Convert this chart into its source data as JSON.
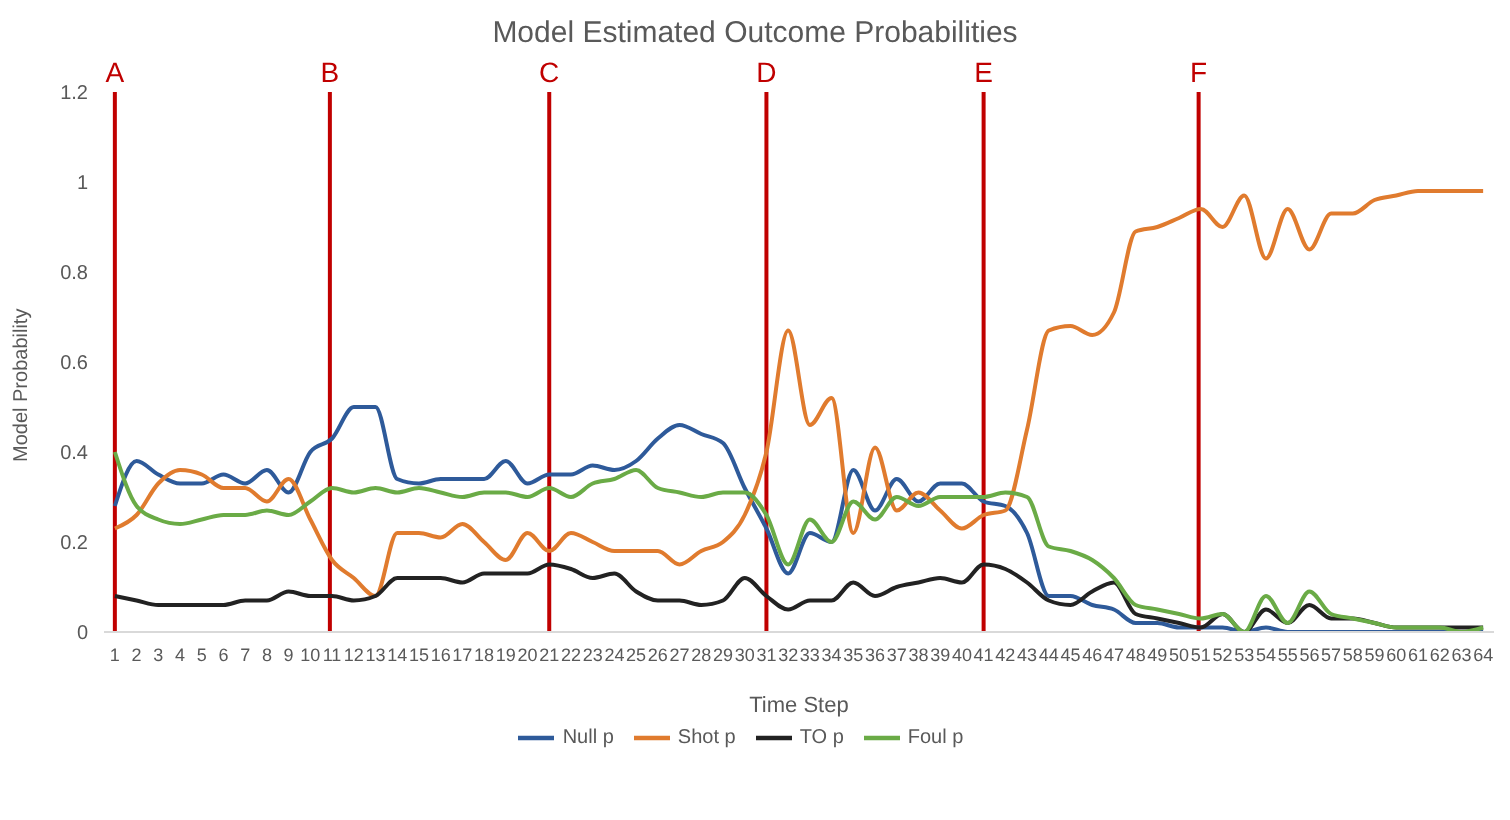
{
  "chart_data": {
    "type": "line",
    "title": "Model Estimated Outcome Probabilities",
    "xlabel": "Time Step",
    "ylabel": "Model Probability",
    "x": [
      1,
      2,
      3,
      4,
      5,
      6,
      7,
      8,
      9,
      10,
      11,
      12,
      13,
      14,
      15,
      16,
      17,
      18,
      19,
      20,
      21,
      22,
      23,
      24,
      25,
      26,
      27,
      28,
      29,
      30,
      31,
      32,
      33,
      34,
      35,
      36,
      37,
      38,
      39,
      40,
      41,
      42,
      43,
      44,
      45,
      46,
      47,
      48,
      49,
      50,
      51,
      52,
      53,
      54,
      55,
      56,
      57,
      58,
      59,
      60,
      61,
      62,
      63,
      64
    ],
    "xlim": [
      0.5,
      64.5
    ],
    "xticks": [
      1,
      2,
      3,
      4,
      5,
      6,
      7,
      8,
      9,
      10,
      11,
      12,
      13,
      14,
      15,
      16,
      17,
      18,
      19,
      20,
      21,
      22,
      23,
      24,
      25,
      26,
      27,
      28,
      29,
      30,
      31,
      32,
      33,
      34,
      35,
      36,
      37,
      38,
      39,
      40,
      41,
      42,
      43,
      44,
      45,
      46,
      47,
      48,
      49,
      50,
      51,
      52,
      53,
      54,
      55,
      56,
      57,
      58,
      59,
      60,
      61,
      62,
      63,
      64
    ],
    "ylim": [
      0,
      1.2
    ],
    "yticks": [
      0,
      0.2,
      0.4,
      0.6,
      0.8,
      1,
      1.2
    ],
    "legend": "bottom",
    "marker": "none",
    "line_style": "solid",
    "series": [
      {
        "name": "Null p",
        "color": "#2e5a9a",
        "values": [
          0.28,
          0.38,
          0.35,
          0.33,
          0.33,
          0.35,
          0.33,
          0.36,
          0.31,
          0.4,
          0.43,
          0.5,
          0.5,
          0.34,
          0.33,
          0.34,
          0.34,
          0.34,
          0.38,
          0.33,
          0.35,
          0.35,
          0.37,
          0.36,
          0.38,
          0.43,
          0.46,
          0.44,
          0.42,
          0.32,
          0.23,
          0.13,
          0.22,
          0.2,
          0.36,
          0.27,
          0.34,
          0.29,
          0.33,
          0.33,
          0.29,
          0.28,
          0.22,
          0.08,
          0.08,
          0.06,
          0.05,
          0.02,
          0.02,
          0.01,
          0.01,
          0.01,
          0,
          0.01,
          0,
          0,
          0,
          0,
          0,
          0,
          0,
          0,
          0,
          0
        ]
      },
      {
        "name": "Shot p",
        "color": "#e07b2e",
        "values": [
          0.23,
          0.26,
          0.33,
          0.36,
          0.35,
          0.32,
          0.32,
          0.29,
          0.34,
          0.25,
          0.16,
          0.12,
          0.08,
          0.22,
          0.22,
          0.21,
          0.24,
          0.2,
          0.16,
          0.22,
          0.18,
          0.22,
          0.2,
          0.18,
          0.18,
          0.18,
          0.15,
          0.18,
          0.2,
          0.26,
          0.4,
          0.67,
          0.46,
          0.52,
          0.22,
          0.41,
          0.27,
          0.31,
          0.27,
          0.23,
          0.26,
          0.27,
          0.45,
          0.67,
          0.68,
          0.66,
          0.71,
          0.89,
          0.9,
          0.92,
          0.94,
          0.9,
          0.97,
          0.83,
          0.94,
          0.85,
          0.93,
          0.93,
          0.96,
          0.97,
          0.98,
          0.98,
          0.98,
          0.98
        ]
      },
      {
        "name": "TO p",
        "color": "#222222",
        "values": [
          0.08,
          0.07,
          0.06,
          0.06,
          0.06,
          0.06,
          0.07,
          0.07,
          0.09,
          0.08,
          0.08,
          0.07,
          0.08,
          0.12,
          0.12,
          0.12,
          0.11,
          0.13,
          0.13,
          0.13,
          0.15,
          0.14,
          0.12,
          0.13,
          0.09,
          0.07,
          0.07,
          0.06,
          0.07,
          0.12,
          0.08,
          0.05,
          0.07,
          0.07,
          0.11,
          0.08,
          0.1,
          0.11,
          0.12,
          0.11,
          0.15,
          0.14,
          0.11,
          0.07,
          0.06,
          0.09,
          0.11,
          0.04,
          0.03,
          0.02,
          0.01,
          0.04,
          0,
          0.05,
          0.02,
          0.06,
          0.03,
          0.03,
          0.02,
          0.01,
          0.01,
          0.01,
          0.01,
          0.01
        ]
      },
      {
        "name": "Foul p",
        "color": "#6aab46",
        "values": [
          0.4,
          0.28,
          0.25,
          0.24,
          0.25,
          0.26,
          0.26,
          0.27,
          0.26,
          0.29,
          0.32,
          0.31,
          0.32,
          0.31,
          0.32,
          0.31,
          0.3,
          0.31,
          0.31,
          0.3,
          0.32,
          0.3,
          0.33,
          0.34,
          0.36,
          0.32,
          0.31,
          0.3,
          0.31,
          0.31,
          0.26,
          0.15,
          0.25,
          0.2,
          0.29,
          0.25,
          0.3,
          0.28,
          0.3,
          0.3,
          0.3,
          0.31,
          0.3,
          0.19,
          0.18,
          0.16,
          0.12,
          0.06,
          0.05,
          0.04,
          0.03,
          0.04,
          0,
          0.08,
          0.02,
          0.09,
          0.04,
          0.03,
          0.02,
          0.01,
          0.01,
          0.01,
          0,
          0.01
        ]
      }
    ],
    "ref_lines": [
      {
        "axis": "x",
        "value": 1,
        "label": "A",
        "color": "#c00000"
      },
      {
        "axis": "x",
        "value": 10.9,
        "label": "B",
        "color": "#c00000"
      },
      {
        "axis": "x",
        "value": 21,
        "label": "C",
        "color": "#c00000"
      },
      {
        "axis": "x",
        "value": 31,
        "label": "D",
        "color": "#c00000"
      },
      {
        "axis": "x",
        "value": 41,
        "label": "E",
        "color": "#c00000"
      },
      {
        "axis": "x",
        "value": 50.9,
        "label": "F",
        "color": "#c00000"
      }
    ]
  }
}
